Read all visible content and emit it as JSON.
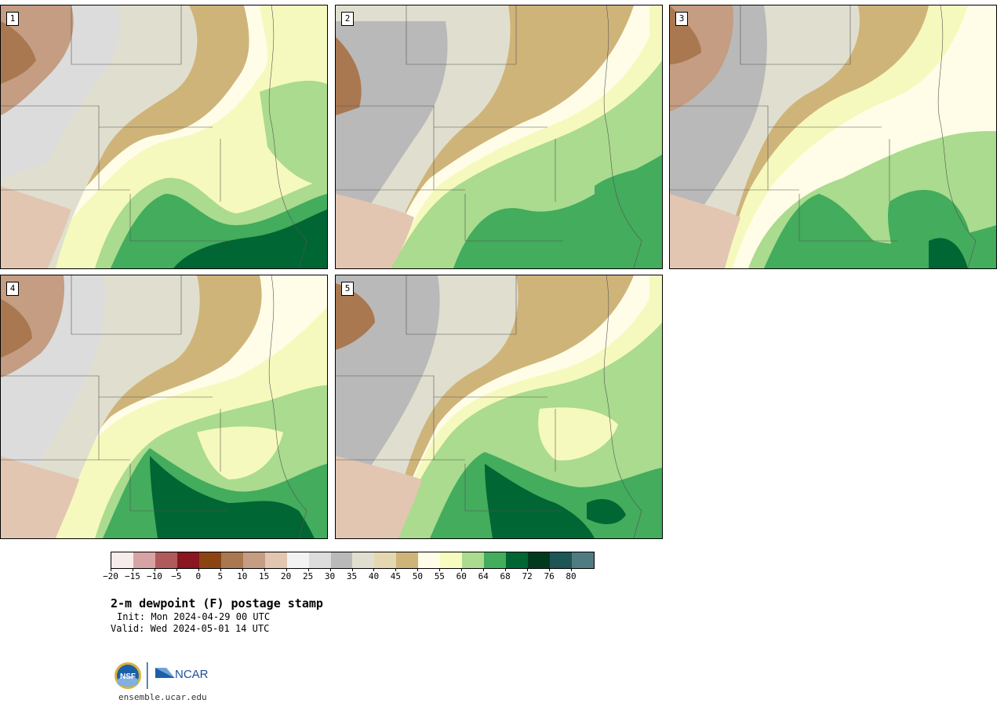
{
  "panels": [
    {
      "id": "1",
      "label": "1"
    },
    {
      "id": "2",
      "label": "2"
    },
    {
      "id": "3",
      "label": "3"
    },
    {
      "id": "4",
      "label": "4"
    },
    {
      "id": "5",
      "label": "5"
    }
  ],
  "colorbar": {
    "colors": [
      "#f6eceb",
      "#d8a3a5",
      "#b05a5e",
      "#8a1620",
      "#8b4513",
      "#a97850",
      "#c49d82",
      "#e2c6b2",
      "#f2f2f2",
      "#dcdcdc",
      "#b9b9b9",
      "#e0dfcf",
      "#e5d7b0",
      "#cfb47a",
      "#fffde8",
      "#f8fbc0",
      "#aadb8e",
      "#43ac5d",
      "#006633",
      "#003a1e",
      "#1e5557",
      "#4f7c80"
    ],
    "ticks": [
      "−20",
      "−15",
      "−10",
      "−5",
      "0",
      "5",
      "10",
      "15",
      "20",
      "25",
      "30",
      "35",
      "40",
      "45",
      "50",
      "55",
      "60",
      "64",
      "68",
      "72",
      "76",
      "80"
    ]
  },
  "title": "2-m dewpoint (F) postage stamp",
  "init": "Init: Mon 2024-04-29 00 UTC",
  "valid": "Valid: Wed 2024-05-01 14 UTC",
  "logos": {
    "nsf": "NSF",
    "ncar": "NCAR"
  },
  "url": "ensemble.ucar.edu"
}
